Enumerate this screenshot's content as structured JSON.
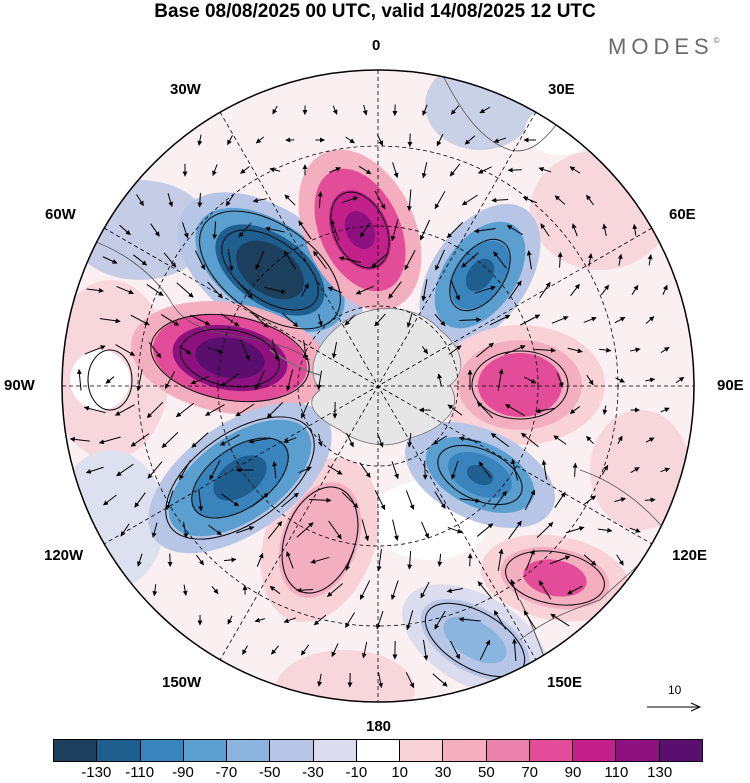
{
  "header": {
    "title": "Base 08/08/2025 00 UTC, valid 14/08/2025 12 UTC",
    "brand": "MODES",
    "brand_mark": "©"
  },
  "map": {
    "projection": "polar-stereographic-south",
    "longitude_labels": {
      "top": "0",
      "top_right": "30E",
      "right_upper": "60E",
      "right": "90E",
      "right_lower": "120E",
      "bottom_right": "150E",
      "bottom": "180",
      "bottom_left": "150W",
      "left_lower": "120W",
      "left": "90W",
      "left_upper": "60W",
      "top_left": "30W"
    },
    "reference_vector_label": "10",
    "anomalies": [
      {
        "name": "low-south-atlantic-30w",
        "sign": "negative",
        "value": -130
      },
      {
        "name": "high-weddell",
        "sign": "positive",
        "value": 110
      },
      {
        "name": "low-south-indian-45e",
        "sign": "negative",
        "value": -90
      },
      {
        "name": "high-indian-90e",
        "sign": "positive",
        "value": 70
      },
      {
        "name": "low-110e",
        "sign": "negative",
        "value": -70
      },
      {
        "name": "high-120e",
        "sign": "positive",
        "value": 70
      },
      {
        "name": "low-150e",
        "sign": "negative",
        "value": -50
      },
      {
        "name": "high-pacific-180",
        "sign": "positive",
        "value": 50
      },
      {
        "name": "low-pacific-120w",
        "sign": "negative",
        "value": -110
      },
      {
        "name": "high-amundsen-90w",
        "sign": "positive",
        "value": 130
      },
      {
        "name": "high-0",
        "sign": "positive",
        "value": 50
      },
      {
        "name": "high-60e",
        "sign": "positive",
        "value": 30
      }
    ]
  },
  "colorbar": {
    "colors": [
      "#1c3f5e",
      "#1f5f90",
      "#3a84bd",
      "#5b9fd0",
      "#8bb5df",
      "#b7c6e6",
      "#dcdcef",
      "#ffffff",
      "#f9d2d8",
      "#f3aec0",
      "#ec82ac",
      "#e24c99",
      "#c4208c",
      "#8e1180",
      "#5a0f6e"
    ],
    "labels": [
      "-130",
      "-110",
      "-90",
      "-70",
      "-50",
      "-30",
      "-10",
      "10",
      "30",
      "50",
      "70",
      "90",
      "110",
      "130"
    ]
  }
}
